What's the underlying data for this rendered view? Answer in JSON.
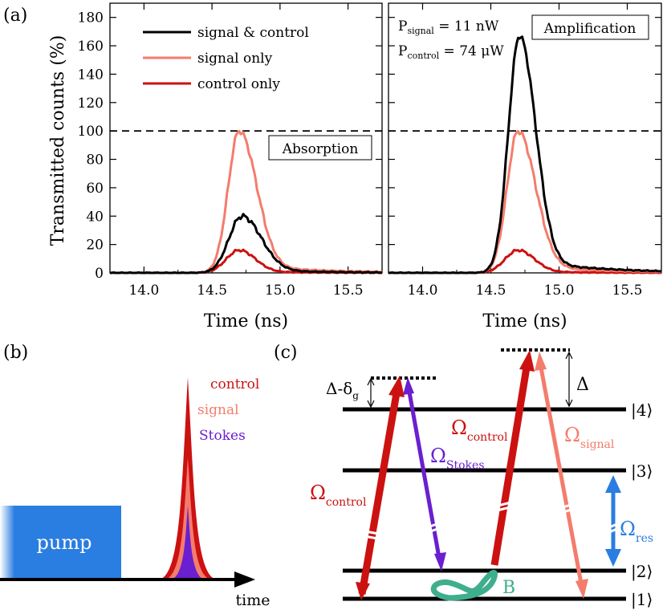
{
  "panel_labels": {
    "a": "(a)",
    "b": "(b)",
    "c": "(c)"
  },
  "chart_data": [
    {
      "type": "line",
      "panel": "left",
      "annotation": "Absorption",
      "xlabel": "Time (ns)",
      "ylabel": "Transmitted counts (%)",
      "xlim": [
        13.75,
        15.75
      ],
      "ylim": [
        0,
        190
      ],
      "xticks": [
        "14.0",
        "14.5",
        "15.0",
        "15.5"
      ],
      "yticks": [
        "0",
        "20",
        "40",
        "60",
        "80",
        "100",
        "120",
        "140",
        "160",
        "180"
      ],
      "reference_line": 100,
      "series": [
        {
          "name": "signal & control",
          "color": "#000000",
          "peak": 40,
          "center": 14.72,
          "wl": 0.2,
          "wr": 0.3,
          "tail": 2.5
        },
        {
          "name": "signal only",
          "color": "#f47c6c",
          "peak": 100,
          "center": 14.7,
          "wl": 0.17,
          "wr": 0.27,
          "tail": 6
        },
        {
          "name": "control only",
          "color": "#cc1111",
          "peak": 16,
          "center": 14.7,
          "wl": 0.2,
          "wr": 0.25,
          "tail": 1
        }
      ]
    },
    {
      "type": "line",
      "panel": "right",
      "annotation": "Amplification",
      "xlabel": "Time (ns)",
      "xlim": [
        13.75,
        15.75
      ],
      "ylim": [
        0,
        190
      ],
      "xticks": [
        "14.0",
        "14.5",
        "15.0",
        "15.5"
      ],
      "reference_line": 100,
      "params": [
        "P",
        "signal",
        " = 11 nW",
        "P",
        "control",
        " = 74 μW"
      ],
      "series": [
        {
          "name": "signal & control",
          "color": "#000000",
          "peak": 167,
          "center": 14.71,
          "wl": 0.17,
          "wr": 0.25,
          "tail": 10
        },
        {
          "name": "signal only",
          "color": "#f47c6c",
          "peak": 100,
          "center": 14.7,
          "wl": 0.17,
          "wr": 0.27,
          "tail": 6
        },
        {
          "name": "control only",
          "color": "#cc1111",
          "peak": 16,
          "center": 14.7,
          "wl": 0.2,
          "wr": 0.25,
          "tail": 1
        }
      ]
    }
  ],
  "legend": [
    "signal & control",
    "signal only",
    "control only"
  ],
  "pulse_diagram": {
    "pump": "pump",
    "time": "time",
    "labels": [
      {
        "text": "control",
        "color": "#cc1111"
      },
      {
        "text": "signal",
        "color": "#f47c6c"
      },
      {
        "text": "Stokes",
        "color": "#6a1fd0"
      }
    ]
  },
  "level_diagram": {
    "levels": [
      "|4⟩",
      "|3⟩",
      "|2⟩",
      "|1⟩"
    ],
    "delta_g": {
      "main": "Δ-δ",
      "sub": "g"
    },
    "delta": "Δ",
    "omega": "Ω",
    "omega_control_1": "control",
    "omega_stokes": "Stokes",
    "omega_control_2": "control",
    "omega_signal": "signal",
    "omega_res": "res",
    "b_label": "B",
    "colors": {
      "control": "#cc1111",
      "signal": "#f47c6c",
      "stokes": "#6a1fd0",
      "res": "#2a7de1",
      "b": "#3fae8c"
    }
  }
}
